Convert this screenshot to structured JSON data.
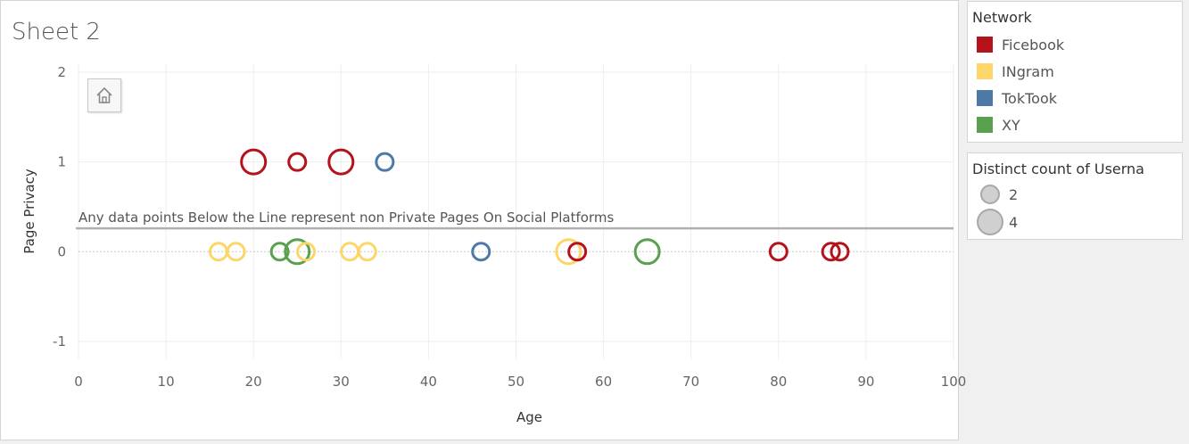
{
  "sheet": {
    "title": "Sheet 2"
  },
  "colors": {
    "Ficebook": "#b5121b",
    "INgram": "#fcd669",
    "TokTook": "#4e79a7",
    "XY": "#59a14f",
    "reference_line": "#b0b0b0"
  },
  "legend_network": {
    "title": "Network",
    "items": [
      {
        "label": "Ficebook",
        "color": "#b5121b"
      },
      {
        "label": "INgram",
        "color": "#fcd669"
      },
      {
        "label": "TokTook",
        "color": "#4e79a7"
      },
      {
        "label": "XY",
        "color": "#59a14f"
      }
    ]
  },
  "legend_size": {
    "title": "Distinct count of Userna",
    "items": [
      {
        "label": "2",
        "value": 2
      },
      {
        "label": "4",
        "value": 4
      }
    ]
  },
  "chart_data": {
    "type": "scatter",
    "title": "Sheet 2",
    "xlabel": "Age",
    "ylabel": "Page Privacy",
    "xlim": [
      0,
      100
    ],
    "ylim": [
      -1.2,
      2.1
    ],
    "x_ticks": [
      "0",
      "10",
      "20",
      "30",
      "40",
      "50",
      "60",
      "70",
      "80",
      "90",
      "100"
    ],
    "y_ticks": [
      "2",
      "1",
      "0",
      "-1"
    ],
    "grid": true,
    "legend_position": "right",
    "reference_line": {
      "y": 0.26,
      "label": "Any data points Below the Line represent non Private Pages On Social Platforms"
    },
    "points": [
      {
        "x": 20,
        "y": 1,
        "network": "Ficebook",
        "count": 4
      },
      {
        "x": 25,
        "y": 1,
        "network": "Ficebook",
        "count": 2
      },
      {
        "x": 30,
        "y": 1,
        "network": "Ficebook",
        "count": 4
      },
      {
        "x": 35,
        "y": 1,
        "network": "TokTook",
        "count": 2
      },
      {
        "x": 16,
        "y": 0,
        "network": "INgram",
        "count": 2
      },
      {
        "x": 18,
        "y": 0,
        "network": "INgram",
        "count": 2
      },
      {
        "x": 23,
        "y": 0,
        "network": "XY",
        "count": 2
      },
      {
        "x": 25,
        "y": 0,
        "network": "XY",
        "count": 4
      },
      {
        "x": 26,
        "y": 0,
        "network": "INgram",
        "count": 2
      },
      {
        "x": 31,
        "y": 0,
        "network": "INgram",
        "count": 2
      },
      {
        "x": 33,
        "y": 0,
        "network": "INgram",
        "count": 2
      },
      {
        "x": 46,
        "y": 0,
        "network": "TokTook",
        "count": 2
      },
      {
        "x": 56,
        "y": 0,
        "network": "INgram",
        "count": 4
      },
      {
        "x": 57,
        "y": 0,
        "network": "Ficebook",
        "count": 2
      },
      {
        "x": 65,
        "y": 0,
        "network": "XY",
        "count": 4
      },
      {
        "x": 80,
        "y": 0,
        "network": "Ficebook",
        "count": 2
      },
      {
        "x": 86,
        "y": 0,
        "network": "Ficebook",
        "count": 2
      },
      {
        "x": 87,
        "y": 0,
        "network": "Ficebook",
        "count": 2
      }
    ]
  }
}
